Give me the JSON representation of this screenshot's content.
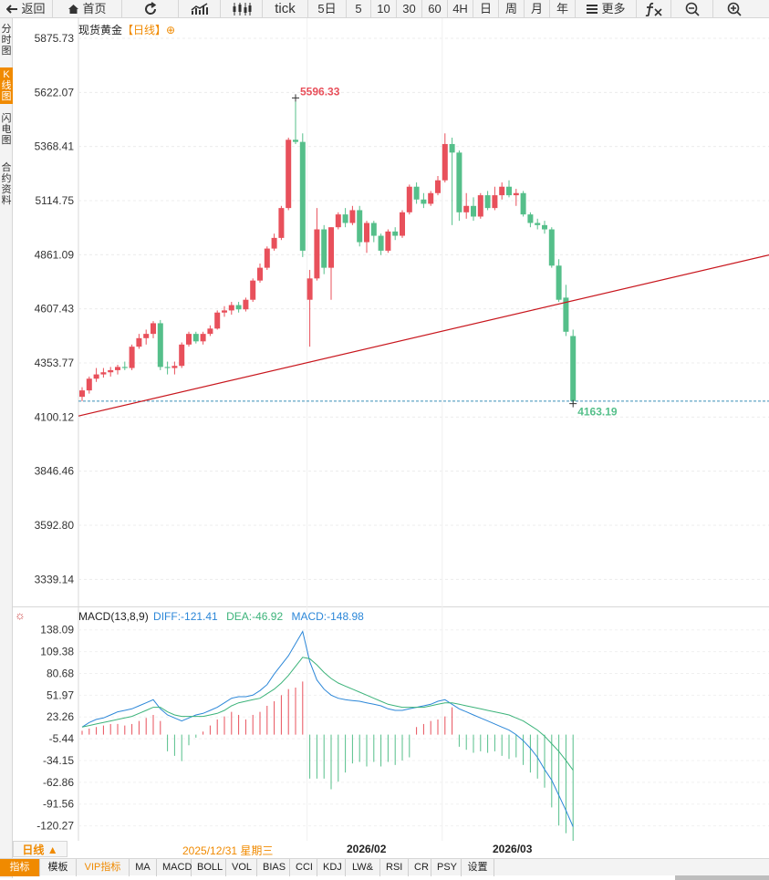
{
  "toolbar": {
    "back": "返回",
    "home": "首页",
    "tick": "tick",
    "five_day": "5日",
    "periods": [
      "5",
      "10",
      "30",
      "60",
      "4H",
      "日",
      "周",
      "月",
      "年"
    ],
    "more": "更多"
  },
  "sidebar": {
    "tabs": [
      {
        "label": [
          "分",
          "时",
          "图"
        ]
      },
      {
        "label": [
          "K",
          "线",
          "图"
        ]
      },
      {
        "label": [
          "闪",
          "电",
          "图"
        ]
      },
      {
        "label": [
          "合",
          "约",
          "资",
          "料"
        ]
      }
    ]
  },
  "main": {
    "title": "现货黄金",
    "kline_tag": "【日线】",
    "y_ticks": [
      "5875.73",
      "5622.07",
      "5368.41",
      "5114.75",
      "4861.09",
      "4607.43",
      "4353.77",
      "4100.12",
      "3846.46",
      "3592.80",
      "3339.14"
    ],
    "high_label": "5596.33",
    "low_label": "4163.19"
  },
  "macd": {
    "name": "MACD(13,8,9)",
    "diff": "DIFF:-121.41",
    "dea": "DEA:-46.92",
    "macd": "MACD:-148.98",
    "y_ticks": [
      "138.09",
      "109.38",
      "80.68",
      "51.97",
      "23.26",
      "-5.44",
      "-34.15",
      "-62.86",
      "-91.56",
      "-120.27"
    ]
  },
  "time_axis": {
    "period_button": "日线 ▲",
    "cursor_time": "2025/12/31 星期三",
    "month_labels": [
      "2026/02",
      "2026/03"
    ]
  },
  "indicator_tabs": [
    "指标",
    "模板",
    "VIP指标",
    "MA",
    "MACD",
    "BOLL",
    "VOL",
    "BIAS",
    "CCI",
    "KDJ",
    "LW&",
    "RSI",
    "CR",
    "PSY",
    "设置"
  ],
  "colors": {
    "up": "#e8505b",
    "down": "#55bf8a",
    "accent": "#f08a00",
    "diff_line": "#2c87d8",
    "dea_line": "#3cb37a",
    "trend_line": "#c8161d"
  },
  "chart_data": {
    "type": "candlestick",
    "title": "现货黄金 日线",
    "ylim": [
      3212.31,
      5875.73
    ],
    "candles": [
      {
        "o": 4195,
        "h": 4240,
        "l": 4175,
        "c": 4225
      },
      {
        "o": 4225,
        "h": 4290,
        "l": 4210,
        "c": 4280
      },
      {
        "o": 4280,
        "h": 4330,
        "l": 4265,
        "c": 4300
      },
      {
        "o": 4300,
        "h": 4330,
        "l": 4285,
        "c": 4310
      },
      {
        "o": 4310,
        "h": 4335,
        "l": 4290,
        "c": 4320
      },
      {
        "o": 4320,
        "h": 4345,
        "l": 4300,
        "c": 4335
      },
      {
        "o": 4335,
        "h": 4360,
        "l": 4320,
        "c": 4330
      },
      {
        "o": 4330,
        "h": 4440,
        "l": 4320,
        "c": 4430
      },
      {
        "o": 4430,
        "h": 4490,
        "l": 4420,
        "c": 4470
      },
      {
        "o": 4470,
        "h": 4510,
        "l": 4440,
        "c": 4490
      },
      {
        "o": 4490,
        "h": 4550,
        "l": 4470,
        "c": 4540
      },
      {
        "o": 4540,
        "h": 4555,
        "l": 4320,
        "c": 4335
      },
      {
        "o": 4335,
        "h": 4360,
        "l": 4300,
        "c": 4330
      },
      {
        "o": 4330,
        "h": 4360,
        "l": 4300,
        "c": 4340
      },
      {
        "o": 4340,
        "h": 4450,
        "l": 4330,
        "c": 4440
      },
      {
        "o": 4440,
        "h": 4500,
        "l": 4430,
        "c": 4490
      },
      {
        "o": 4490,
        "h": 4500,
        "l": 4445,
        "c": 4455
      },
      {
        "o": 4455,
        "h": 4500,
        "l": 4440,
        "c": 4490
      },
      {
        "o": 4490,
        "h": 4530,
        "l": 4480,
        "c": 4515
      },
      {
        "o": 4515,
        "h": 4600,
        "l": 4510,
        "c": 4590
      },
      {
        "o": 4590,
        "h": 4620,
        "l": 4570,
        "c": 4600
      },
      {
        "o": 4600,
        "h": 4640,
        "l": 4580,
        "c": 4625
      },
      {
        "o": 4625,
        "h": 4640,
        "l": 4590,
        "c": 4605
      },
      {
        "o": 4605,
        "h": 4660,
        "l": 4595,
        "c": 4650
      },
      {
        "o": 4650,
        "h": 4750,
        "l": 4640,
        "c": 4740
      },
      {
        "o": 4740,
        "h": 4820,
        "l": 4730,
        "c": 4800
      },
      {
        "o": 4800,
        "h": 4900,
        "l": 4790,
        "c": 4890
      },
      {
        "o": 4890,
        "h": 4960,
        "l": 4880,
        "c": 4940
      },
      {
        "o": 4940,
        "h": 5090,
        "l": 4930,
        "c": 5080
      },
      {
        "o": 5080,
        "h": 5410,
        "l": 5070,
        "c": 5400
      },
      {
        "o": 5400,
        "h": 5596.33,
        "l": 5380,
        "c": 5390
      },
      {
        "o": 5390,
        "h": 5430,
        "l": 4850,
        "c": 4880
      },
      {
        "o": 4650,
        "h": 4790,
        "l": 4430,
        "c": 4750
      },
      {
        "o": 4750,
        "h": 5080,
        "l": 4740,
        "c": 4980
      },
      {
        "o": 4980,
        "h": 5000,
        "l": 4770,
        "c": 4800
      },
      {
        "o": 4800,
        "h": 4990,
        "l": 4650,
        "c": 4990
      },
      {
        "o": 4990,
        "h": 5060,
        "l": 4980,
        "c": 5050
      },
      {
        "o": 5050,
        "h": 5080,
        "l": 4990,
        "c": 5010
      },
      {
        "o": 5010,
        "h": 5090,
        "l": 5000,
        "c": 5070
      },
      {
        "o": 5070,
        "h": 5090,
        "l": 4900,
        "c": 4920
      },
      {
        "o": 4920,
        "h": 5020,
        "l": 4870,
        "c": 5010
      },
      {
        "o": 5010,
        "h": 5020,
        "l": 4920,
        "c": 4950
      },
      {
        "o": 4950,
        "h": 4960,
        "l": 4860,
        "c": 4880
      },
      {
        "o": 4880,
        "h": 4980,
        "l": 4870,
        "c": 4970
      },
      {
        "o": 4970,
        "h": 4990,
        "l": 4930,
        "c": 4950
      },
      {
        "o": 4950,
        "h": 5070,
        "l": 4940,
        "c": 5060
      },
      {
        "o": 5060,
        "h": 5190,
        "l": 5050,
        "c": 5180
      },
      {
        "o": 5180,
        "h": 5200,
        "l": 5100,
        "c": 5120
      },
      {
        "o": 5120,
        "h": 5150,
        "l": 5080,
        "c": 5100
      },
      {
        "o": 5100,
        "h": 5160,
        "l": 5090,
        "c": 5150
      },
      {
        "o": 5150,
        "h": 5230,
        "l": 5140,
        "c": 5210
      },
      {
        "o": 5210,
        "h": 5430,
        "l": 5200,
        "c": 5380
      },
      {
        "o": 5380,
        "h": 5410,
        "l": 5000,
        "c": 5340
      },
      {
        "o": 5340,
        "h": 5350,
        "l": 5020,
        "c": 5060
      },
      {
        "o": 5060,
        "h": 5150,
        "l": 5030,
        "c": 5090
      },
      {
        "o": 5090,
        "h": 5130,
        "l": 5020,
        "c": 5040
      },
      {
        "o": 5040,
        "h": 5150,
        "l": 5030,
        "c": 5140
      },
      {
        "o": 5140,
        "h": 5160,
        "l": 5070,
        "c": 5080
      },
      {
        "o": 5080,
        "h": 5180,
        "l": 5070,
        "c": 5140
      },
      {
        "o": 5140,
        "h": 5200,
        "l": 5120,
        "c": 5180
      },
      {
        "o": 5180,
        "h": 5210,
        "l": 5130,
        "c": 5140
      },
      {
        "o": 5140,
        "h": 5170,
        "l": 5090,
        "c": 5150
      },
      {
        "o": 5150,
        "h": 5160,
        "l": 5040,
        "c": 5050
      },
      {
        "o": 5050,
        "h": 5060,
        "l": 4990,
        "c": 5010
      },
      {
        "o": 5010,
        "h": 5030,
        "l": 4980,
        "c": 5000
      },
      {
        "o": 5000,
        "h": 5020,
        "l": 4960,
        "c": 4980
      },
      {
        "o": 4980,
        "h": 4990,
        "l": 4800,
        "c": 4810
      },
      {
        "o": 4810,
        "h": 4840,
        "l": 4640,
        "c": 4650
      },
      {
        "o": 4660,
        "h": 4720,
        "l": 4480,
        "c": 4500
      },
      {
        "o": 4480,
        "h": 4510,
        "l": 4163.19,
        "c": 4175
      }
    ],
    "support_level": 4175,
    "trend_line": {
      "from": 4105,
      "to": 4860
    },
    "macd_ylim": [
      -140,
      145
    ],
    "macd_values": [
      5,
      8,
      10,
      12,
      14,
      14,
      12,
      14,
      18,
      22,
      26,
      18,
      -22,
      -28,
      -35,
      -14,
      -4,
      4,
      12,
      20,
      24,
      30,
      26,
      20,
      26,
      30,
      38,
      44,
      52,
      60,
      62,
      70,
      -58,
      -58,
      -58,
      -72,
      -62,
      -50,
      -38,
      -36,
      -42,
      -36,
      -42,
      -36,
      -40,
      -34,
      -30,
      10,
      14,
      18,
      20,
      24,
      36,
      -16,
      -20,
      -24,
      -22,
      -24,
      -22,
      -28,
      -32,
      -30,
      -40,
      -50,
      -58,
      -70,
      -96,
      -120,
      -130,
      -148.98
    ],
    "diff_values": [
      10,
      16,
      20,
      22,
      26,
      30,
      32,
      34,
      38,
      42,
      46,
      34,
      26,
      22,
      18,
      22,
      26,
      28,
      32,
      36,
      42,
      48,
      50,
      50,
      52,
      58,
      66,
      80,
      92,
      104,
      120,
      136,
      96,
      72,
      60,
      52,
      48,
      46,
      45,
      44,
      42,
      40,
      38,
      34,
      32,
      32,
      34,
      36,
      38,
      40,
      44,
      46,
      40,
      34,
      30,
      26,
      22,
      18,
      14,
      10,
      6,
      0,
      -8,
      -18,
      -30,
      -46,
      -60,
      -80,
      -100,
      -121.41
    ],
    "dea_values": [
      10,
      12,
      14,
      16,
      18,
      20,
      22,
      24,
      28,
      32,
      36,
      36,
      30,
      26,
      24,
      24,
      24,
      24,
      26,
      28,
      32,
      38,
      42,
      44,
      46,
      48,
      54,
      60,
      68,
      78,
      90,
      102,
      100,
      92,
      82,
      74,
      68,
      64,
      60,
      56,
      52,
      48,
      44,
      40,
      38,
      36,
      36,
      36,
      36,
      38,
      40,
      42,
      42,
      40,
      38,
      36,
      34,
      32,
      30,
      28,
      26,
      22,
      18,
      12,
      6,
      -2,
      -12,
      -22,
      -34,
      -46.92
    ],
    "month_markers": [
      {
        "label": "2026/02",
        "index": 32
      },
      {
        "label": "2026/03",
        "index": 51
      }
    ],
    "high": 5596.33,
    "low": 4163.19
  }
}
